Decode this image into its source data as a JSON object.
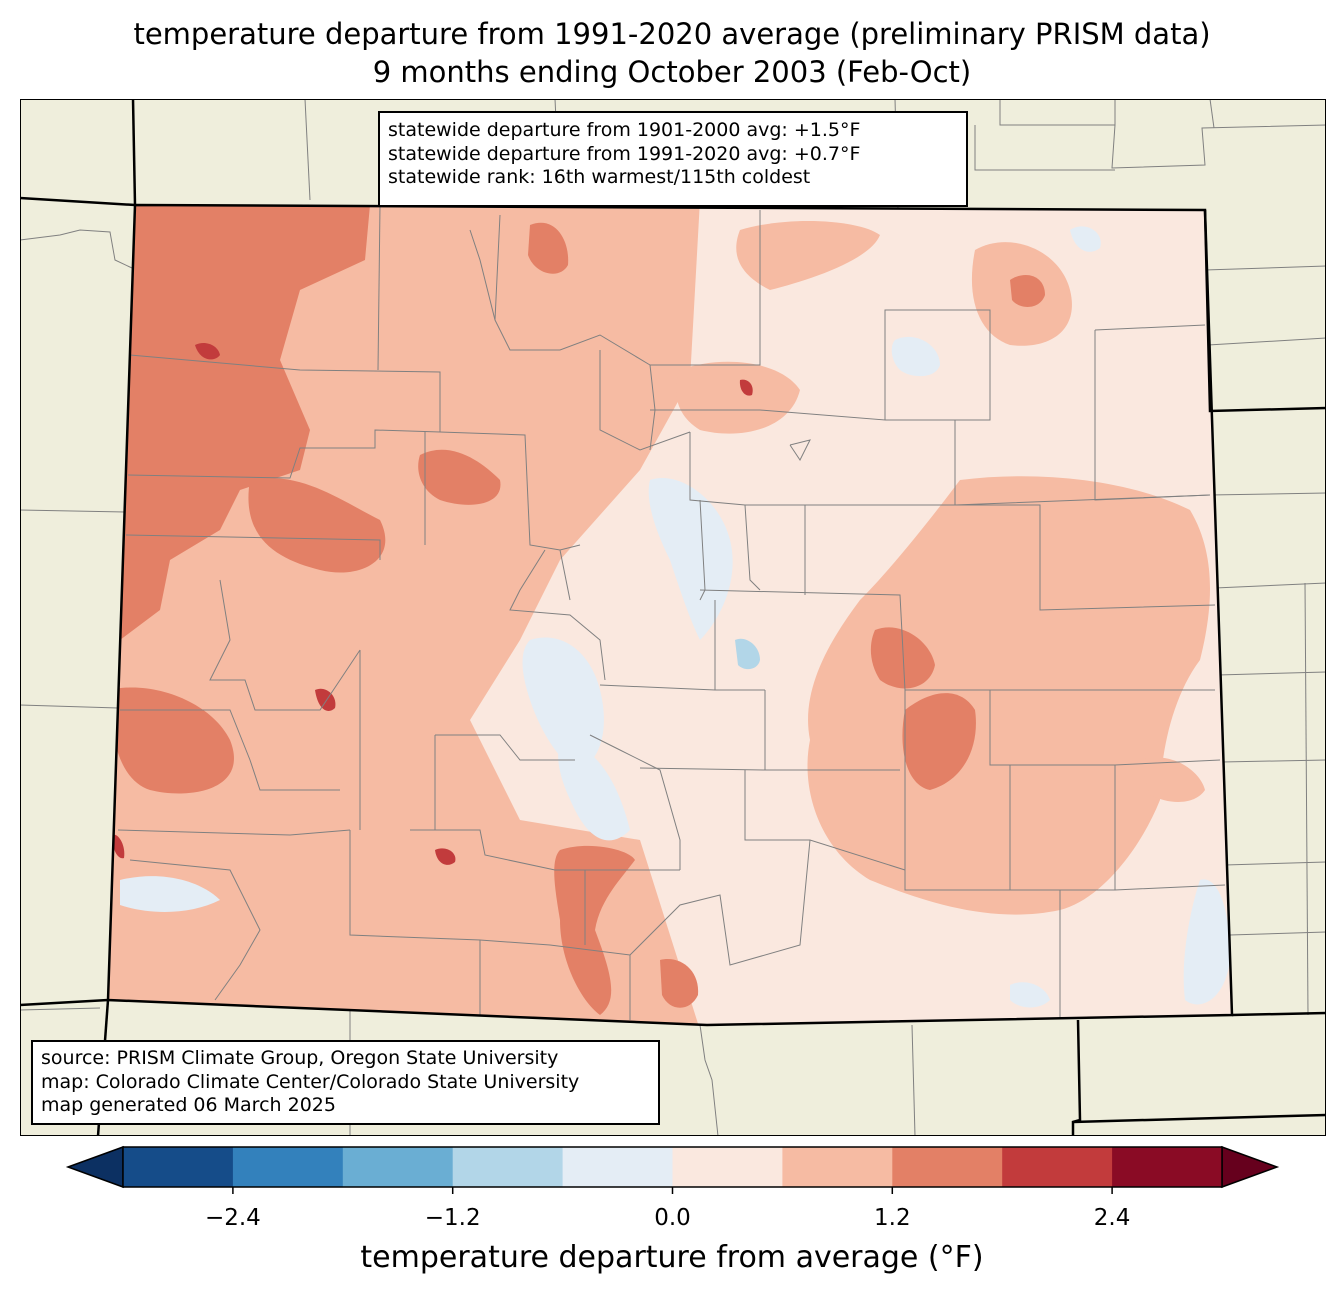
{
  "title": {
    "line1": "temperature departure from 1991-2020 average (preliminary PRISM data)",
    "line2": "9 months ending October 2003 (Feb-Oct)"
  },
  "stats": {
    "line1": "statewide departure from 1901-2000 avg: +1.5°F",
    "line2": "statewide departure from 1991-2020 avg: +0.7°F",
    "line3": "statewide rank: 16th warmest/115th coldest"
  },
  "source": {
    "line1": "source: PRISM Climate Group, Oregon State University",
    "line2": "map: Colorado Climate Center/Colorado State University",
    "line3": "map generated 06 March 2025"
  },
  "colorbar": {
    "label": "temperature departure from average (°F)",
    "ticks": [
      "−2.4",
      "−1.2",
      "0.0",
      "1.2",
      "2.4"
    ],
    "tick_values": [
      -2.4,
      -1.2,
      0.0,
      1.2,
      2.4
    ],
    "levels": [
      -3.0,
      -2.4,
      -1.8,
      -1.2,
      -0.6,
      0.0,
      0.6,
      1.2,
      1.8,
      2.4,
      3.0
    ],
    "colors": [
      "#154c89",
      "#3381bc",
      "#6aaed3",
      "#b2d6e8",
      "#e4edf5",
      "#fae8df",
      "#f6bba3",
      "#e38066",
      "#c23b3c",
      "#8a0b25"
    ],
    "under_color": "#0c3062",
    "over_color": "#66001d"
  },
  "colors": {
    "land": "#efeedc",
    "base": "#fae8df",
    "cool": "#e4edf5",
    "cooler": "#b2d6e8",
    "coolest": "#6aaed3",
    "warm": "#f6bba3",
    "warmer": "#e38066",
    "hot": "#c23b3c",
    "county_line": "#808080"
  }
}
